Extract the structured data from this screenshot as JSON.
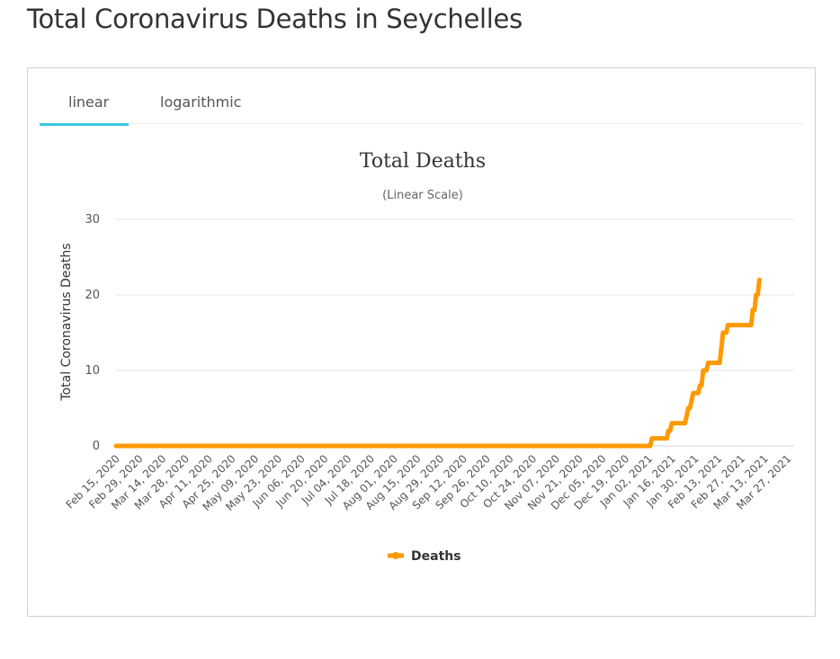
{
  "page": {
    "title": "Total Coronavirus Deaths in Seychelles"
  },
  "tabs": [
    {
      "label": "linear",
      "active": true
    },
    {
      "label": "logarithmic",
      "active": false
    }
  ],
  "colors": {
    "series": "#ff9900",
    "accent": "#3ec3e8",
    "grid": "#e6e6e6",
    "baseline": "#ccd6eb"
  },
  "chart_data": {
    "type": "line",
    "title": "Total Deaths",
    "subtitle": "(Linear Scale)",
    "xlabel": "",
    "ylabel": "Total Coronavirus Deaths",
    "ylim": [
      0,
      30
    ],
    "yticks": [
      0,
      10,
      20,
      30
    ],
    "grid": true,
    "legend_position": "bottom-center",
    "x_start": "2020-02-15",
    "x_end": "2021-03-31",
    "categories": [
      "Feb 15, 2020",
      "Feb 29, 2020",
      "Mar 14, 2020",
      "Mar 28, 2020",
      "Apr 11, 2020",
      "Apr 25, 2020",
      "May 09, 2020",
      "May 23, 2020",
      "Jun 06, 2020",
      "Jun 20, 2020",
      "Jul 04, 2020",
      "Jul 18, 2020",
      "Aug 01, 2020",
      "Aug 15, 2020",
      "Aug 29, 2020",
      "Sep 12, 2020",
      "Sep 26, 2020",
      "Oct 10, 2020",
      "Oct 24, 2020",
      "Nov 07, 2020",
      "Nov 21, 2020",
      "Dec 05, 2020",
      "Dec 19, 2020",
      "Jan 02, 2021",
      "Jan 16, 2021",
      "Jan 30, 2021",
      "Feb 13, 2021",
      "Feb 27, 2021",
      "Mar 13, 2021",
      "Mar 27, 2021"
    ],
    "series": [
      {
        "name": "Deaths",
        "color": "#ff9900",
        "points": [
          [
            "2020-02-15",
            0
          ],
          [
            "2021-01-03",
            0
          ],
          [
            "2021-01-04",
            1
          ],
          [
            "2021-01-13",
            1
          ],
          [
            "2021-01-14",
            2
          ],
          [
            "2021-01-15",
            2
          ],
          [
            "2021-01-16",
            3
          ],
          [
            "2021-01-24",
            3
          ],
          [
            "2021-01-25",
            4
          ],
          [
            "2021-01-26",
            5
          ],
          [
            "2021-01-27",
            5
          ],
          [
            "2021-01-28",
            6
          ],
          [
            "2021-01-29",
            7
          ],
          [
            "2021-02-01",
            7
          ],
          [
            "2021-02-02",
            8
          ],
          [
            "2021-02-03",
            8
          ],
          [
            "2021-02-04",
            10
          ],
          [
            "2021-02-06",
            10
          ],
          [
            "2021-02-07",
            11
          ],
          [
            "2021-02-14",
            11
          ],
          [
            "2021-02-15",
            13
          ],
          [
            "2021-02-16",
            15
          ],
          [
            "2021-02-18",
            15
          ],
          [
            "2021-02-19",
            16
          ],
          [
            "2021-03-05",
            16
          ],
          [
            "2021-03-06",
            18
          ],
          [
            "2021-03-07",
            18
          ],
          [
            "2021-03-08",
            20
          ],
          [
            "2021-03-09",
            20
          ],
          [
            "2021-03-10",
            22
          ]
        ]
      }
    ]
  }
}
